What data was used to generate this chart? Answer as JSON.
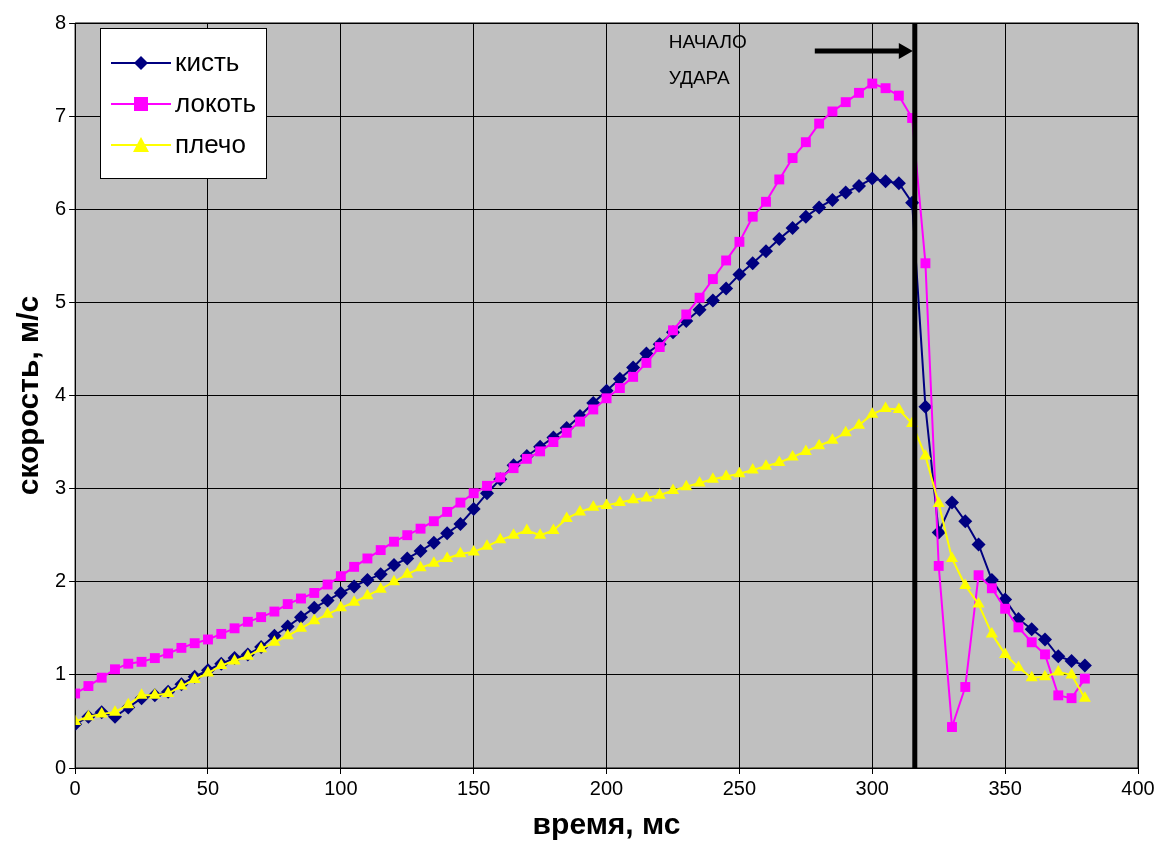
{
  "chart_data": {
    "type": "line",
    "xlabel": "время, мс",
    "ylabel": "скорость, м/с",
    "x": [
      0,
      5,
      10,
      15,
      20,
      25,
      30,
      35,
      40,
      45,
      50,
      55,
      60,
      65,
      70,
      75,
      80,
      85,
      90,
      95,
      100,
      105,
      110,
      115,
      120,
      125,
      130,
      135,
      140,
      145,
      150,
      155,
      160,
      165,
      170,
      175,
      180,
      185,
      190,
      195,
      200,
      205,
      210,
      215,
      220,
      225,
      230,
      235,
      240,
      245,
      250,
      255,
      260,
      265,
      270,
      275,
      280,
      285,
      290,
      295,
      300,
      305,
      310,
      315,
      320,
      325,
      330,
      335,
      340,
      345,
      350,
      355,
      360,
      365,
      370,
      375,
      380
    ],
    "series": [
      {
        "name": "кисть",
        "color": "#000080",
        "marker": "diamond",
        "values": [
          0.47,
          0.55,
          0.6,
          0.55,
          0.65,
          0.75,
          0.78,
          0.82,
          0.9,
          0.98,
          1.05,
          1.12,
          1.18,
          1.22,
          1.3,
          1.42,
          1.52,
          1.62,
          1.72,
          1.8,
          1.88,
          1.95,
          2.02,
          2.08,
          2.18,
          2.25,
          2.33,
          2.42,
          2.52,
          2.62,
          2.78,
          2.95,
          3.1,
          3.25,
          3.35,
          3.45,
          3.55,
          3.65,
          3.78,
          3.92,
          4.05,
          4.18,
          4.3,
          4.45,
          4.55,
          4.68,
          4.8,
          4.92,
          5.02,
          5.15,
          5.3,
          5.42,
          5.55,
          5.68,
          5.8,
          5.92,
          6.02,
          6.1,
          6.18,
          6.25,
          6.33,
          6.3,
          6.28,
          6.07,
          3.88,
          2.53,
          2.85,
          2.65,
          2.4,
          2.02,
          1.81,
          1.6,
          1.49,
          1.38,
          1.2,
          1.15,
          1.1
        ]
      },
      {
        "name": "локоть",
        "color": "#ff00ff",
        "marker": "square",
        "values": [
          0.8,
          0.88,
          0.97,
          1.06,
          1.12,
          1.14,
          1.18,
          1.23,
          1.29,
          1.34,
          1.38,
          1.44,
          1.5,
          1.57,
          1.62,
          1.68,
          1.76,
          1.82,
          1.88,
          1.97,
          2.06,
          2.16,
          2.25,
          2.34,
          2.43,
          2.5,
          2.57,
          2.65,
          2.75,
          2.85,
          2.95,
          3.03,
          3.12,
          3.22,
          3.32,
          3.4,
          3.5,
          3.6,
          3.72,
          3.85,
          3.97,
          4.08,
          4.2,
          4.35,
          4.52,
          4.7,
          4.87,
          5.05,
          5.25,
          5.45,
          5.65,
          5.92,
          6.08,
          6.32,
          6.55,
          6.72,
          6.92,
          7.05,
          7.15,
          7.25,
          7.35,
          7.3,
          7.22,
          6.98,
          5.42,
          2.17,
          0.44,
          0.87,
          2.07,
          1.93,
          1.71,
          1.51,
          1.35,
          1.22,
          0.78,
          0.75,
          0.96
        ]
      },
      {
        "name": "плечо",
        "color": "#ffff00",
        "marker": "triangle",
        "values": [
          0.5,
          0.55,
          0.58,
          0.6,
          0.68,
          0.78,
          0.78,
          0.8,
          0.88,
          0.95,
          1.02,
          1.1,
          1.15,
          1.2,
          1.28,
          1.35,
          1.42,
          1.5,
          1.58,
          1.65,
          1.72,
          1.78,
          1.85,
          1.92,
          2.0,
          2.08,
          2.15,
          2.2,
          2.25,
          2.3,
          2.32,
          2.38,
          2.45,
          2.5,
          2.55,
          2.5,
          2.55,
          2.68,
          2.75,
          2.8,
          2.82,
          2.85,
          2.88,
          2.9,
          2.93,
          2.98,
          3.02,
          3.06,
          3.1,
          3.13,
          3.16,
          3.2,
          3.24,
          3.28,
          3.34,
          3.4,
          3.46,
          3.52,
          3.6,
          3.68,
          3.8,
          3.86,
          3.85,
          3.7,
          3.35,
          2.84,
          2.25,
          1.96,
          1.76,
          1.44,
          1.22,
          1.08,
          0.97,
          0.98,
          1.03,
          1.0,
          0.75
        ]
      }
    ],
    "xlim": [
      0,
      400
    ],
    "xticks": [
      0,
      50,
      100,
      150,
      200,
      250,
      300,
      350,
      400
    ],
    "ylim": [
      0,
      8
    ],
    "yticks": [
      0,
      1,
      2,
      3,
      4,
      5,
      6,
      7,
      8
    ],
    "ref_lines": [
      {
        "axis": "x",
        "value": 316,
        "color": "#000000"
      }
    ],
    "annotations": [
      "НАЧАЛО УДАРА"
    ],
    "grid": true,
    "legend": "top left",
    "line_style": "solid"
  }
}
